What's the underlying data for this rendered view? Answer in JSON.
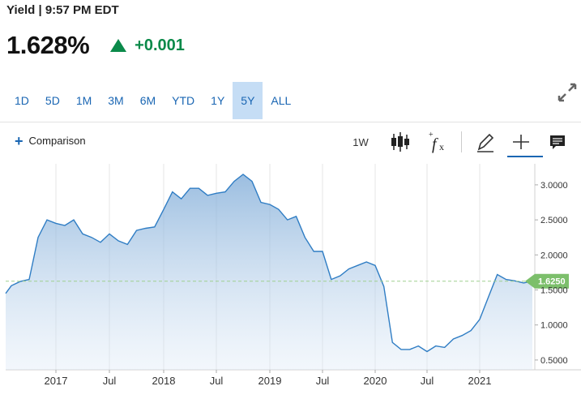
{
  "header": {
    "line": "Yield | 9:57 PM EDT",
    "price": "1.628%",
    "change": "+0.001",
    "change_color": "#0b8a4a"
  },
  "ranges": [
    {
      "label": "1D",
      "active": false
    },
    {
      "label": "5D",
      "active": false
    },
    {
      "label": "1M",
      "active": false
    },
    {
      "label": "3M",
      "active": false
    },
    {
      "label": "6M",
      "active": false
    },
    {
      "label": "YTD",
      "active": false
    },
    {
      "label": "1Y",
      "active": false
    },
    {
      "label": "5Y",
      "active": true
    },
    {
      "label": "ALL",
      "active": false
    }
  ],
  "toolbar": {
    "comparison": "Comparison",
    "interval": "1W",
    "icons": [
      "candlestick-icon",
      "function-icon",
      "pencil-icon",
      "crosshair-icon",
      "comment-icon"
    ]
  },
  "colors": {
    "accent": "#1a66b3",
    "active_range_bg": "#c5ddf5",
    "line": "#2f7dc4",
    "last_label": "#7cbf6b"
  },
  "chart_data": {
    "type": "area",
    "x_tick_labels": [
      "2017",
      "Jul",
      "2018",
      "Jul",
      "2019",
      "Jul",
      "2020",
      "Jul",
      "2021"
    ],
    "y_tick_labels": [
      "3.0000",
      "2.5000",
      "2.0000",
      "1.5000",
      "1.0000",
      "0.5000"
    ],
    "y_ticks": [
      3.0,
      2.5,
      2.0,
      1.5,
      1.0,
      0.5
    ],
    "ylim": [
      0.36,
      3.3
    ],
    "last_value_label": "1.6250",
    "last_value": 1.625,
    "grid": "vertical",
    "x": [
      "2016-07",
      "2016-08",
      "2016-09",
      "2016-10",
      "2016-11",
      "2016-12",
      "2017-01",
      "2017-02",
      "2017-03",
      "2017-04",
      "2017-05",
      "2017-06",
      "2017-07",
      "2017-08",
      "2017-09",
      "2017-10",
      "2017-11",
      "2017-12",
      "2018-01",
      "2018-02",
      "2018-03",
      "2018-04",
      "2018-05",
      "2018-06",
      "2018-07",
      "2018-08",
      "2018-09",
      "2018-10",
      "2018-11",
      "2018-12",
      "2019-01",
      "2019-02",
      "2019-03",
      "2019-04",
      "2019-05",
      "2019-06",
      "2019-07",
      "2019-08",
      "2019-09",
      "2019-10",
      "2019-11",
      "2019-12",
      "2020-01",
      "2020-02",
      "2020-03",
      "2020-04",
      "2020-05",
      "2020-06",
      "2020-07",
      "2020-08",
      "2020-09",
      "2020-10",
      "2020-11",
      "2020-12",
      "2021-01",
      "2021-02",
      "2021-03",
      "2021-04",
      "2021-05",
      "2021-06",
      "2021-07"
    ],
    "values": [
      1.45,
      1.56,
      1.62,
      1.65,
      2.25,
      2.5,
      2.45,
      2.42,
      2.5,
      2.3,
      2.25,
      2.18,
      2.3,
      2.2,
      2.15,
      2.35,
      2.38,
      2.4,
      2.65,
      2.9,
      2.8,
      2.95,
      2.95,
      2.85,
      2.88,
      2.9,
      3.05,
      3.15,
      3.05,
      2.75,
      2.72,
      2.65,
      2.5,
      2.55,
      2.25,
      2.05,
      2.05,
      1.65,
      1.7,
      1.8,
      1.85,
      1.9,
      1.85,
      1.55,
      0.75,
      0.65,
      0.65,
      0.7,
      0.62,
      0.7,
      0.68,
      0.8,
      0.85,
      0.92,
      1.08,
      1.4,
      1.72,
      1.65,
      1.63,
      1.6,
      1.625
    ]
  }
}
